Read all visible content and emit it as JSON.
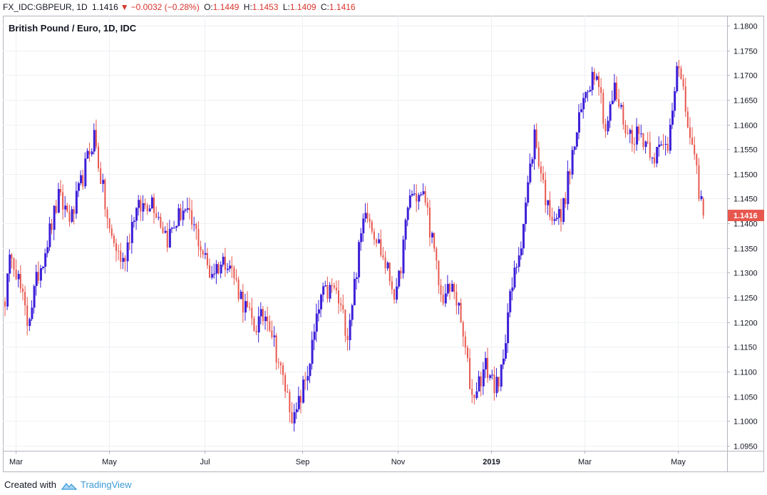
{
  "header": {
    "symbol": "FX_IDC:GBPEUR, 1D",
    "last": "1.1416",
    "arrow": "▼",
    "change": "−0.0032 (−0.28%)",
    "o_label": "O:",
    "o_value": "1.1449",
    "h_label": "H:",
    "h_value": "1.1453",
    "l_label": "L:",
    "l_value": "1.1409",
    "c_label": "C:",
    "c_value": "1.1416"
  },
  "footer": {
    "created_with": "Created with",
    "brand": "TradingView"
  },
  "chart_data": {
    "type": "candlestick",
    "title": "British Pound / Euro, 1D, IDC",
    "ylim": [
      1.094,
      1.182
    ],
    "y_ticks": [
      "1.0950",
      "1.1000",
      "1.1050",
      "1.1100",
      "1.1150",
      "1.1200",
      "1.1250",
      "1.1300",
      "1.1350",
      "1.1400",
      "1.1450",
      "1.1500",
      "1.1550",
      "1.1600",
      "1.1650",
      "1.1700",
      "1.1750",
      "1.1800"
    ],
    "x_ticks": [
      {
        "label": "Mar",
        "index": 5
      },
      {
        "label": "May",
        "index": 47
      },
      {
        "label": "Jul",
        "index": 90
      },
      {
        "label": "Sep",
        "index": 134
      },
      {
        "label": "Nov",
        "index": 177
      },
      {
        "label": "2019",
        "index": 219
      },
      {
        "label": "Mar",
        "index": 261
      },
      {
        "label": "May",
        "index": 303
      }
    ],
    "last_price_label": "1.1416",
    "up_color": "#3b1fd8",
    "down_color": "#e8574e",
    "anchors": [
      [
        0,
        1.125
      ],
      [
        3,
        1.135
      ],
      [
        10,
        1.12
      ],
      [
        15,
        1.13
      ],
      [
        24,
        1.145
      ],
      [
        30,
        1.141
      ],
      [
        40,
        1.158
      ],
      [
        47,
        1.138
      ],
      [
        53,
        1.132
      ],
      [
        58,
        1.142
      ],
      [
        66,
        1.145
      ],
      [
        73,
        1.137
      ],
      [
        80,
        1.143
      ],
      [
        86,
        1.138
      ],
      [
        92,
        1.13
      ],
      [
        100,
        1.133
      ],
      [
        107,
        1.124
      ],
      [
        112,
        1.119
      ],
      [
        118,
        1.122
      ],
      [
        124,
        1.11
      ],
      [
        130,
        1.1
      ],
      [
        136,
        1.11
      ],
      [
        142,
        1.125
      ],
      [
        148,
        1.127
      ],
      [
        154,
        1.118
      ],
      [
        162,
        1.144
      ],
      [
        170,
        1.133
      ],
      [
        176,
        1.125
      ],
      [
        182,
        1.146
      ],
      [
        189,
        1.145
      ],
      [
        196,
        1.125
      ],
      [
        202,
        1.127
      ],
      [
        206,
        1.117
      ],
      [
        210,
        1.105
      ],
      [
        216,
        1.111
      ],
      [
        222,
        1.106
      ],
      [
        226,
        1.122
      ],
      [
        232,
        1.137
      ],
      [
        238,
        1.158
      ],
      [
        244,
        1.143
      ],
      [
        250,
        1.141
      ],
      [
        256,
        1.156
      ],
      [
        261,
        1.167
      ],
      [
        266,
        1.172
      ],
      [
        270,
        1.159
      ],
      [
        274,
        1.167
      ],
      [
        280,
        1.158
      ],
      [
        286,
        1.158
      ],
      [
        292,
        1.154
      ],
      [
        298,
        1.156
      ],
      [
        302,
        1.173
      ],
      [
        306,
        1.163
      ],
      [
        310,
        1.152
      ],
      [
        314,
        1.142
      ]
    ],
    "n_candles": 315,
    "last_candle": {
      "open": 1.1449,
      "high": 1.1453,
      "low": 1.1409,
      "close": 1.1416
    }
  }
}
